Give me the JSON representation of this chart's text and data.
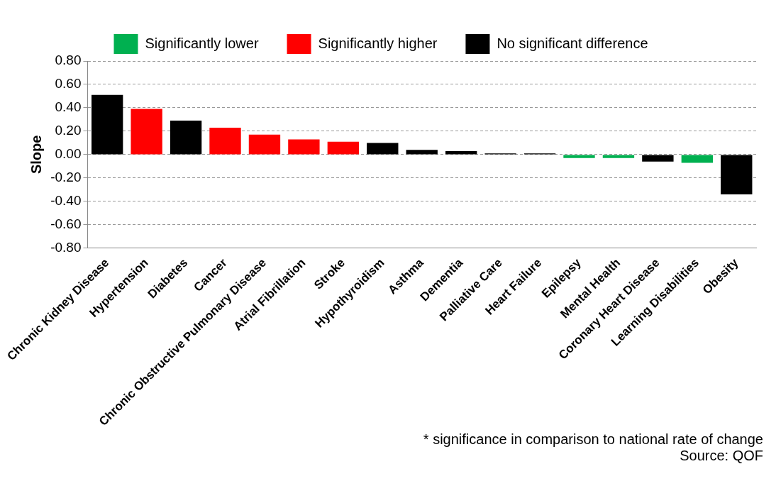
{
  "chart_data": {
    "type": "bar",
    "stacked": true,
    "ylabel": "Slope",
    "categories": [
      "Chronic Kidney Disease",
      "Hypertension",
      "Diabetes",
      "Cancer",
      "Chronic Obstructive Pulmonary Disease",
      "Atrial Fibrillation",
      "Stroke",
      "Hypothyroidism",
      "Asthma",
      "Dementia",
      "Palliative Care",
      "Heart Failure",
      "Epilepsy",
      "Mental Health",
      "Coronary Heart Disease",
      "Learning Disabilities",
      "Obesity"
    ],
    "series": [
      {
        "name": "Significantly lower",
        "color": "#00b050",
        "values": [
          null,
          null,
          null,
          null,
          null,
          null,
          null,
          null,
          null,
          null,
          null,
          null,
          -0.03,
          -0.03,
          null,
          -0.07,
          null
        ]
      },
      {
        "name": "Significantly higher",
        "color": "#ff0000",
        "values": [
          null,
          0.39,
          null,
          0.23,
          0.17,
          0.13,
          0.11,
          null,
          null,
          null,
          null,
          null,
          null,
          null,
          null,
          null,
          null
        ]
      },
      {
        "name": "No significant difference",
        "color": "#000000",
        "values": [
          0.51,
          null,
          0.29,
          null,
          null,
          null,
          null,
          0.1,
          0.04,
          0.03,
          0.01,
          0.01,
          null,
          null,
          -0.06,
          null,
          -0.34
        ]
      }
    ],
    "ylim": [
      -0.8,
      0.8
    ],
    "yticks": [
      {
        "value": -0.8,
        "label": "-0.80"
      },
      {
        "value": -0.6,
        "label": "-0.60"
      },
      {
        "value": -0.4,
        "label": "-0.40"
      },
      {
        "value": -0.2,
        "label": "-0.20"
      },
      {
        "value": 0,
        "label": "0.00"
      },
      {
        "value": 0.2,
        "label": "0.20"
      },
      {
        "value": 0.4,
        "label": "0.40"
      },
      {
        "value": 0.6,
        "label": "0.60"
      },
      {
        "value": 0.8,
        "label": "0.80"
      }
    ],
    "grid": "y",
    "legend": "top",
    "annotations": [
      "* significance in comparison to national rate of change",
      "Source: QOF"
    ]
  }
}
